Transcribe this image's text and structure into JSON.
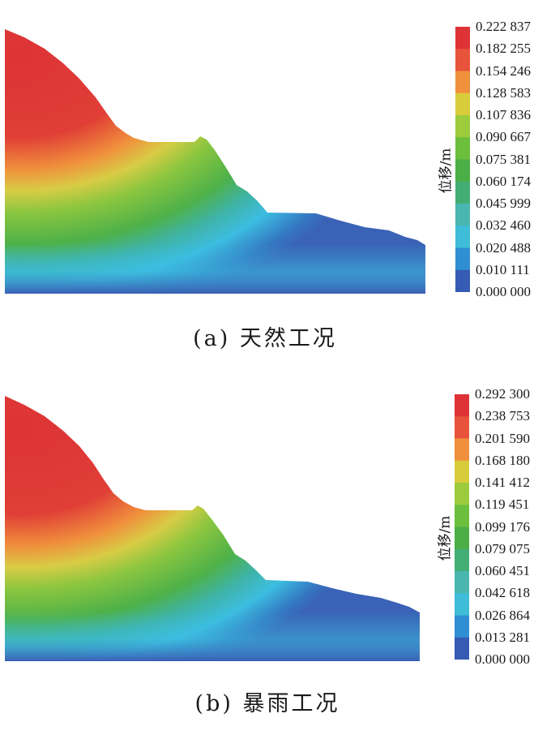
{
  "panels": [
    {
      "id": "a",
      "caption": "(a) 天然工况",
      "legend_title": "位移/m",
      "legend_ticks": [
        "0.222 837",
        "0.182 255",
        "0.154 246",
        "0.128 583",
        "0.107 836",
        "0.090 667",
        "0.075 381",
        "0.060 174",
        "0.045 999",
        "0.032 460",
        "0.020 488",
        "0.010 111",
        "0.000 000"
      ]
    },
    {
      "id": "b",
      "caption": "(b) 暴雨工况",
      "legend_title": "位移/m",
      "legend_ticks": [
        "0.292 300",
        "0.238 753",
        "0.201 590",
        "0.168 180",
        "0.141 412",
        "0.119 451",
        "0.099 176",
        "0.079 075",
        "0.060 451",
        "0.042 618",
        "0.026 864",
        "0.013 281",
        "0.000 000"
      ]
    }
  ],
  "legend_band_colors": [
    "#dd3337",
    "#e8533b",
    "#f0903c",
    "#d9cc3c",
    "#9ccc3c",
    "#6cbf3c",
    "#4cae46",
    "#44ad74",
    "#4ab6b0",
    "#3ebcd8",
    "#2f8fd2",
    "#355bb4"
  ],
  "field_colors": {
    "red": "#dd3337",
    "orange": "#f0903c",
    "yellow": "#d8cc45",
    "green": "#5bb542",
    "teal": "#3fb3a5",
    "cyan": "#3cbde0",
    "blue": "#3a62b6"
  }
}
